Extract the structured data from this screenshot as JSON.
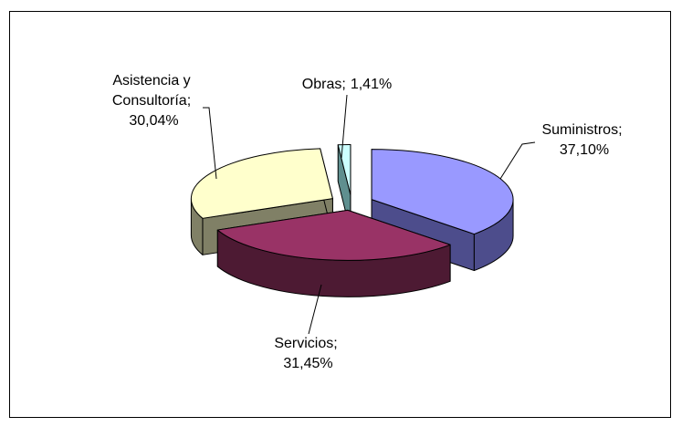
{
  "chart_data": {
    "type": "pie3d",
    "categories": [
      "Suministros",
      "Servicios",
      "Asistencia y Consultoría",
      "Obras"
    ],
    "values": [
      37.1,
      31.45,
      30.04,
      1.41
    ],
    "value_labels": [
      "37,10%",
      "31,45%",
      "30,04%",
      "1,41%"
    ],
    "label_separator": ";",
    "colors": [
      "#9999ff",
      "#993366",
      "#ffffcc",
      "#ccffff"
    ],
    "side_colors": [
      "#4d4d8c",
      "#4d1a33",
      "#808066",
      "#5f8f8f"
    ]
  }
}
